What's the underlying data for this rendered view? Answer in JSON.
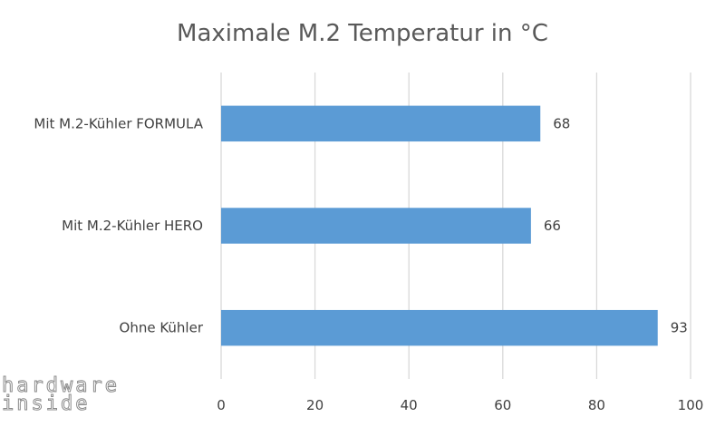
{
  "watermark": {
    "line1": "hardware",
    "line2": "inside"
  },
  "chart_data": {
    "type": "bar",
    "orientation": "horizontal",
    "title": "Maximale M.2 Temperatur in °C",
    "categories": [
      "Mit M.2-Kühler FORMULA",
      "Mit M.2-Kühler HERO",
      "Ohne Kühler"
    ],
    "values": [
      68,
      66,
      93
    ],
    "xlabel": "",
    "ylabel": "",
    "xlim": [
      0,
      100
    ],
    "xticks": [
      0,
      20,
      40,
      60,
      80,
      100
    ],
    "grid": true,
    "legend": "none",
    "data_labels": true,
    "colors": {
      "bar": "#5b9bd5",
      "grid": "#d9d9d9",
      "text": "#404040",
      "title": "#595959"
    }
  }
}
